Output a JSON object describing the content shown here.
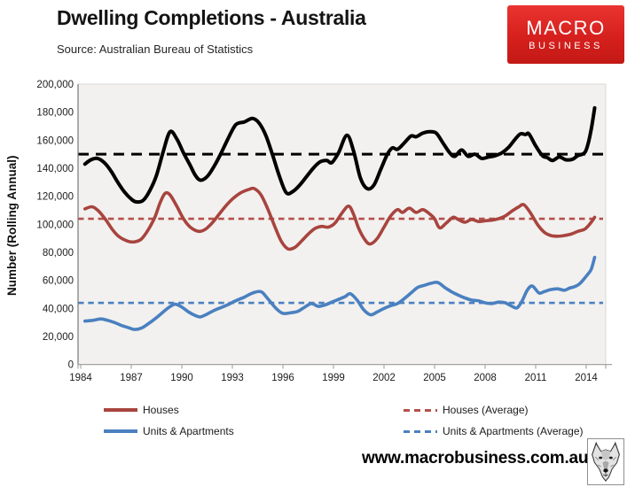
{
  "header": {
    "title": "Dwelling Completions - Australia",
    "source": "Source: Australian Bureau of Statistics"
  },
  "logo": {
    "line1": "MACRO",
    "line2": "BUSINESS",
    "bg_color": "#d6201d"
  },
  "footer": {
    "url": "www.macrobusiness.com.au",
    "wolf_logo": "wolf-sketch"
  },
  "chart_data": {
    "type": "line",
    "title": "Dwelling Completions - Australia",
    "xlabel": "",
    "ylabel": "Number (Rolling Annual)",
    "ylim": [
      0,
      200000
    ],
    "xlim": [
      1984,
      2015.3
    ],
    "grid": false,
    "plot_bg": "#f2f1ef",
    "y_values_unit": "thousands of dwellings",
    "yticks": [
      {
        "value": 0,
        "label": "0"
      },
      {
        "value": 20000,
        "label": "20,000"
      },
      {
        "value": 40000,
        "label": "40,000"
      },
      {
        "value": 60000,
        "label": "60,000"
      },
      {
        "value": 80000,
        "label": "80,000"
      },
      {
        "value": 100000,
        "label": "100,000"
      },
      {
        "value": 120000,
        "label": "120,000"
      },
      {
        "value": 140000,
        "label": "140,000"
      },
      {
        "value": 160000,
        "label": "160,000"
      },
      {
        "value": 180000,
        "label": "180,000"
      },
      {
        "value": 200000,
        "label": "200,000"
      }
    ],
    "xticks": [
      1984,
      1987,
      1990,
      1993,
      1996,
      1999,
      2002,
      2005,
      2008,
      2011,
      2014
    ],
    "series": [
      {
        "name": "Total dwellings (unlabelled black line)",
        "color": "#000000",
        "in_legend": false,
        "x": [
          1984.25,
          1984.6,
          1985.0,
          1985.4,
          1985.8,
          1986.2,
          1986.6,
          1987.0,
          1987.3,
          1987.7,
          1988.1,
          1988.5,
          1988.9,
          1989.3,
          1989.7,
          1990.1,
          1990.5,
          1990.8,
          1991.1,
          1991.5,
          1991.9,
          1992.3,
          1992.7,
          1993.2,
          1993.7,
          1994.2,
          1994.6,
          1995.0,
          1995.4,
          1995.8,
          1996.2,
          1996.6,
          1997.0,
          1997.4,
          1997.8,
          1998.2,
          1998.6,
          1998.9,
          1999.3,
          1999.8,
          2000.2,
          2000.6,
          2001.0,
          2001.4,
          2001.8,
          2002.2,
          2002.5,
          2002.8,
          2003.2,
          2003.6,
          2003.9,
          2004.3,
          2004.7,
          2005.1,
          2005.5,
          2005.9,
          2006.2,
          2006.6,
          2007.0,
          2007.4,
          2007.8,
          2008.2,
          2008.6,
          2009.0,
          2009.4,
          2009.8,
          2010.1,
          2010.4,
          2010.6,
          2011.0,
          2011.4,
          2011.7,
          2012.0,
          2012.4,
          2012.8,
          2013.2,
          2013.5,
          2013.9,
          2014.1,
          2014.3,
          2014.5
        ],
        "y_thousands": [
          143,
          146,
          147,
          144,
          138,
          130,
          123,
          118,
          116,
          117,
          124,
          135,
          152,
          166,
          161,
          151,
          142,
          135,
          131.5,
          134,
          141,
          150,
          160,
          171,
          173,
          175.5,
          172,
          163,
          149,
          134,
          122.5,
          123.5,
          128,
          134,
          140,
          144.5,
          145.5,
          144,
          151,
          163.5,
          152,
          133,
          125.5,
          128,
          139,
          150,
          154.5,
          153.5,
          158,
          163,
          162.5,
          165,
          166,
          165,
          158,
          151,
          148.5,
          153,
          148.5,
          150,
          147,
          148,
          149,
          151,
          155,
          161,
          164.5,
          164,
          164.5,
          156,
          149,
          147.5,
          145.5,
          148,
          146,
          146.5,
          149,
          151,
          157,
          168,
          183
        ]
      },
      {
        "name": "Houses",
        "color": "#a8443e",
        "in_legend": true,
        "x": [
          1984.25,
          1984.7,
          1985.1,
          1985.5,
          1985.9,
          1986.3,
          1986.8,
          1987.2,
          1987.6,
          1988.0,
          1988.4,
          1988.7,
          1989.0,
          1989.3,
          1989.7,
          1990.1,
          1990.5,
          1991.0,
          1991.4,
          1991.8,
          1992.2,
          1992.6,
          1993.0,
          1993.5,
          1994.0,
          1994.3,
          1994.7,
          1995.1,
          1995.5,
          1995.9,
          1996.3,
          1996.7,
          1997.1,
          1997.5,
          1997.9,
          1998.3,
          1998.7,
          1999.1,
          1999.5,
          1999.9,
          2000.2,
          2000.5,
          2000.9,
          2001.2,
          2001.6,
          2002.0,
          2002.4,
          2002.8,
          2003.1,
          2003.5,
          2003.9,
          2004.3,
          2004.7,
          2005.0,
          2005.3,
          2005.7,
          2006.1,
          2006.4,
          2006.8,
          2007.2,
          2007.6,
          2008.0,
          2008.4,
          2008.8,
          2009.2,
          2009.6,
          2010.0,
          2010.3,
          2010.7,
          2011.1,
          2011.5,
          2011.9,
          2012.3,
          2012.7,
          2013.1,
          2013.5,
          2013.9,
          2014.2,
          2014.5
        ],
        "y_thousands": [
          111,
          112.5,
          109,
          103,
          96,
          91,
          88,
          87.5,
          89.5,
          96,
          105,
          115,
          122,
          121,
          113,
          104,
          98,
          95,
          96.5,
          101,
          107,
          113,
          118,
          122.5,
          125,
          125.5,
          121,
          111,
          99,
          88,
          82.5,
          83.5,
          88,
          93,
          97,
          98.5,
          98,
          101,
          108,
          113,
          107,
          97,
          88.5,
          86,
          90,
          98,
          106,
          110.5,
          108.5,
          111.5,
          108.5,
          110.5,
          107.5,
          104,
          97.5,
          101,
          105,
          103.5,
          101.5,
          103.5,
          102,
          102.5,
          103,
          104,
          106,
          109.5,
          112.5,
          114,
          108,
          100,
          94.5,
          92,
          91.5,
          92,
          93,
          95,
          96.5,
          100,
          105
        ]
      },
      {
        "name": "Units & Apartments",
        "color": "#4a80c0",
        "in_legend": true,
        "x": [
          1984.25,
          1984.7,
          1985.2,
          1985.6,
          1986.0,
          1986.4,
          1986.9,
          1987.2,
          1987.6,
          1988.0,
          1988.4,
          1988.8,
          1989.2,
          1989.6,
          1990.0,
          1990.4,
          1990.8,
          1991.1,
          1991.5,
          1991.9,
          1992.3,
          1992.7,
          1993.2,
          1993.7,
          1994.2,
          1994.7,
          1995.1,
          1995.6,
          1996.0,
          1996.5,
          1996.9,
          1997.3,
          1997.7,
          1998.1,
          1998.5,
          1998.9,
          1999.3,
          1999.7,
          2000.0,
          2000.4,
          2000.8,
          2001.2,
          2001.6,
          2002.0,
          2002.4,
          2002.8,
          2003.2,
          2003.6,
          2004.0,
          2004.4,
          2004.8,
          2005.2,
          2005.6,
          2006.0,
          2006.4,
          2006.8,
          2007.2,
          2007.6,
          2008.0,
          2008.4,
          2008.8,
          2009.2,
          2009.6,
          2009.9,
          2010.2,
          2010.5,
          2010.8,
          2011.2,
          2011.5,
          2011.9,
          2012.3,
          2012.7,
          2013.0,
          2013.3,
          2013.6,
          2013.9,
          2014.1,
          2014.3,
          2014.5
        ],
        "y_thousands": [
          31,
          31.5,
          32.5,
          31.5,
          30,
          28,
          26,
          25,
          26,
          29,
          32.5,
          36.5,
          40.5,
          43,
          41,
          37.5,
          35,
          34,
          36,
          38.5,
          40.5,
          42.5,
          45.5,
          48,
          51,
          52,
          47,
          40,
          36.5,
          37,
          38,
          41,
          43.5,
          41.5,
          42.5,
          44.5,
          46.5,
          48.5,
          50.5,
          46,
          39,
          35.5,
          37.5,
          40,
          42,
          43.5,
          47,
          51,
          55,
          56.5,
          58,
          58.5,
          55,
          52,
          49.5,
          47.5,
          46,
          45.5,
          44,
          43.5,
          44.5,
          44,
          41.5,
          40.5,
          45.5,
          53,
          56,
          51,
          52,
          53.5,
          54,
          53,
          54.5,
          55.5,
          57.5,
          61.5,
          64.5,
          68,
          76.5
        ]
      }
    ],
    "averages": [
      {
        "name": "Total (Average, unlabelled black dashed line)",
        "value_thousands": 150,
        "color": "#000000",
        "dash": "long",
        "in_legend": false
      },
      {
        "name": "Houses (Average)",
        "value_thousands": 104,
        "color": "#b5504b",
        "dash": "short",
        "in_legend": true
      },
      {
        "name": "Units & Apartments (Average)",
        "value_thousands": 44,
        "color": "#4a80c0",
        "dash": "short",
        "in_legend": true
      }
    ],
    "legend": [
      {
        "label": "Houses",
        "color": "#a8443e",
        "style": "solid"
      },
      {
        "label": "Units & Apartments",
        "color": "#4a80c0",
        "style": "solid"
      },
      {
        "label": "Houses (Average)",
        "color": "#b5504b",
        "style": "dashed"
      },
      {
        "label": "Units & Apartments (Average)",
        "color": "#4a80c0",
        "style": "dashed"
      }
    ],
    "legend_position": "bottom, two columns"
  }
}
